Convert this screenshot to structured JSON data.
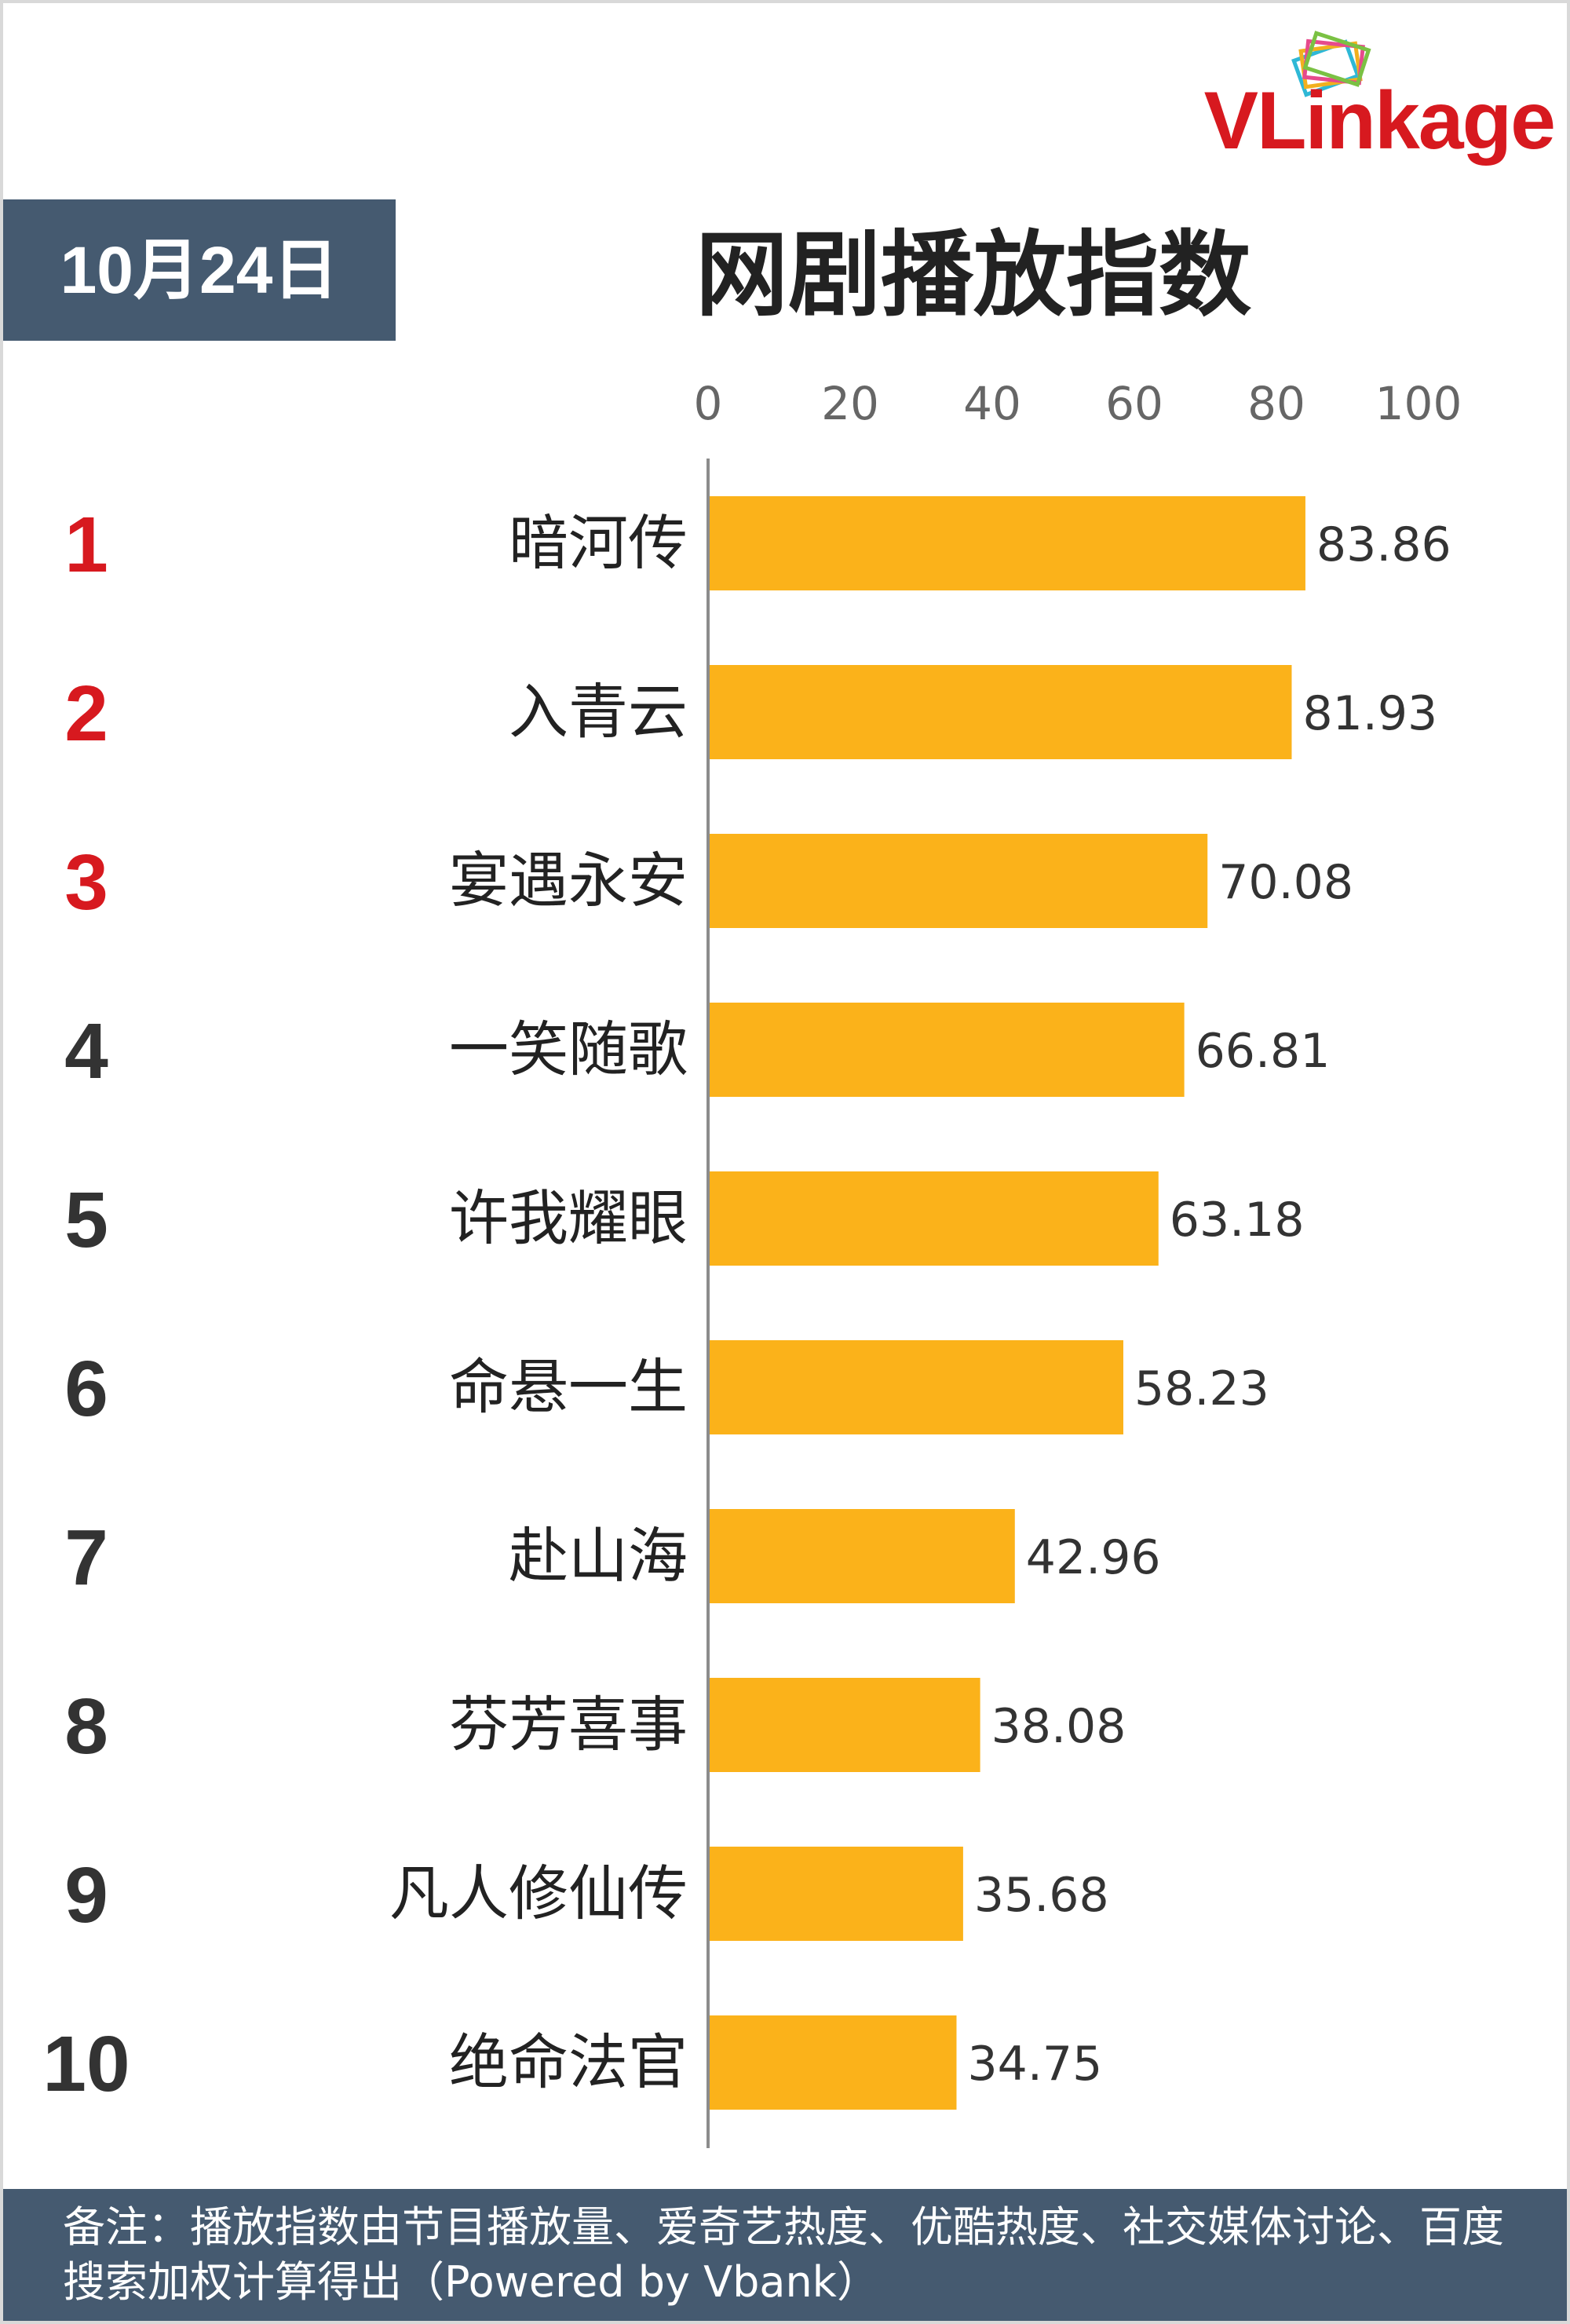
{
  "logo": {
    "text": "VLinkage"
  },
  "date_badge": "10月24日",
  "chart_data": {
    "type": "bar",
    "orientation": "horizontal",
    "title": "网剧播放指数",
    "xlim": [
      0,
      100
    ],
    "x_ticks": [
      "0",
      "20",
      "40",
      "60",
      "80",
      "100"
    ],
    "x_tick_values": [
      0,
      20,
      40,
      60,
      80,
      100
    ],
    "ranks": [
      "1",
      "2",
      "3",
      "4",
      "5",
      "6",
      "7",
      "8",
      "9",
      "10"
    ],
    "categories": [
      "暗河传",
      "入青云",
      "宴遇永安",
      "一笑随歌",
      "许我耀眼",
      "命悬一生",
      "赴山海",
      "芬芳喜事",
      "凡人修仙传",
      "绝命法官"
    ],
    "values": [
      83.86,
      81.93,
      70.08,
      66.81,
      63.18,
      58.23,
      42.96,
      38.08,
      35.68,
      34.75
    ],
    "value_labels": [
      "83.86",
      "81.93",
      "70.08",
      "66.81",
      "63.18",
      "58.23",
      "42.96",
      "38.08",
      "35.68",
      "34.75"
    ],
    "bar_color": "#fbb21a",
    "top_rank_color": "#d7191f",
    "rank_color": "#333333",
    "grid": false
  },
  "footer": {
    "note": "备注：播放指数由节目播放量、爱奇艺热度、优酷热度、社交媒体讨论、百度搜索加权计算得出（Powered by Vbank）"
  }
}
